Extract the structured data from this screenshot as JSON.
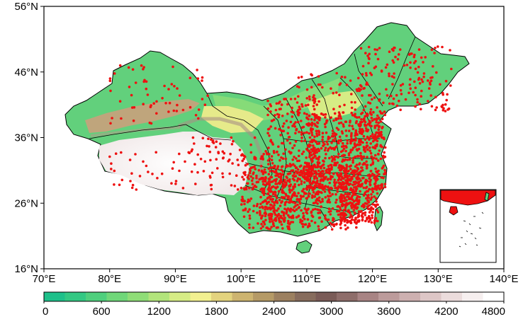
{
  "map": {
    "x_axis": {
      "range": [
        70,
        140
      ],
      "ticks": [
        {
          "value": 70,
          "label": "70°E"
        },
        {
          "value": 80,
          "label": "80°E"
        },
        {
          "value": 90,
          "label": "90°E"
        },
        {
          "value": 100,
          "label": "100°E"
        },
        {
          "value": 110,
          "label": "110°E"
        },
        {
          "value": 120,
          "label": "120°E"
        },
        {
          "value": 130,
          "label": "130°E"
        },
        {
          "value": 140,
          "label": "140°E"
        }
      ]
    },
    "y_axis": {
      "range": [
        16,
        56
      ],
      "ticks": [
        {
          "value": 56,
          "label": "56°N"
        },
        {
          "value": 46,
          "label": "46°N"
        },
        {
          "value": 36,
          "label": "36°N"
        },
        {
          "value": 26,
          "label": "26°N"
        },
        {
          "value": 16,
          "label": "16°N"
        }
      ]
    },
    "colorbar": {
      "range": [
        0,
        4800
      ],
      "labels": [
        "0",
        "600",
        "1200",
        "1800",
        "2400",
        "3000",
        "3600",
        "4200",
        "4800"
      ],
      "colors": [
        "#1ec08a",
        "#33c883",
        "#4fcf7d",
        "#70d779",
        "#8fdd77",
        "#b2e47b",
        "#d6ec85",
        "#f2f090",
        "#e3d37e",
        "#cdb470",
        "#b59a66",
        "#9c8060",
        "#876c5d",
        "#7a5b57",
        "#8e6d6a",
        "#a88484",
        "#bc9b9b",
        "#cdb0b0",
        "#ddc6c6",
        "#ebdcdc",
        "#f6efef",
        "#ffffff"
      ]
    },
    "colors": {
      "station_dot": "#ee1111",
      "outline": "#000000",
      "high_plateau": "#fbf9f9",
      "mountain": "#a89085",
      "lowland_green": "#4fcf7d"
    }
  }
}
